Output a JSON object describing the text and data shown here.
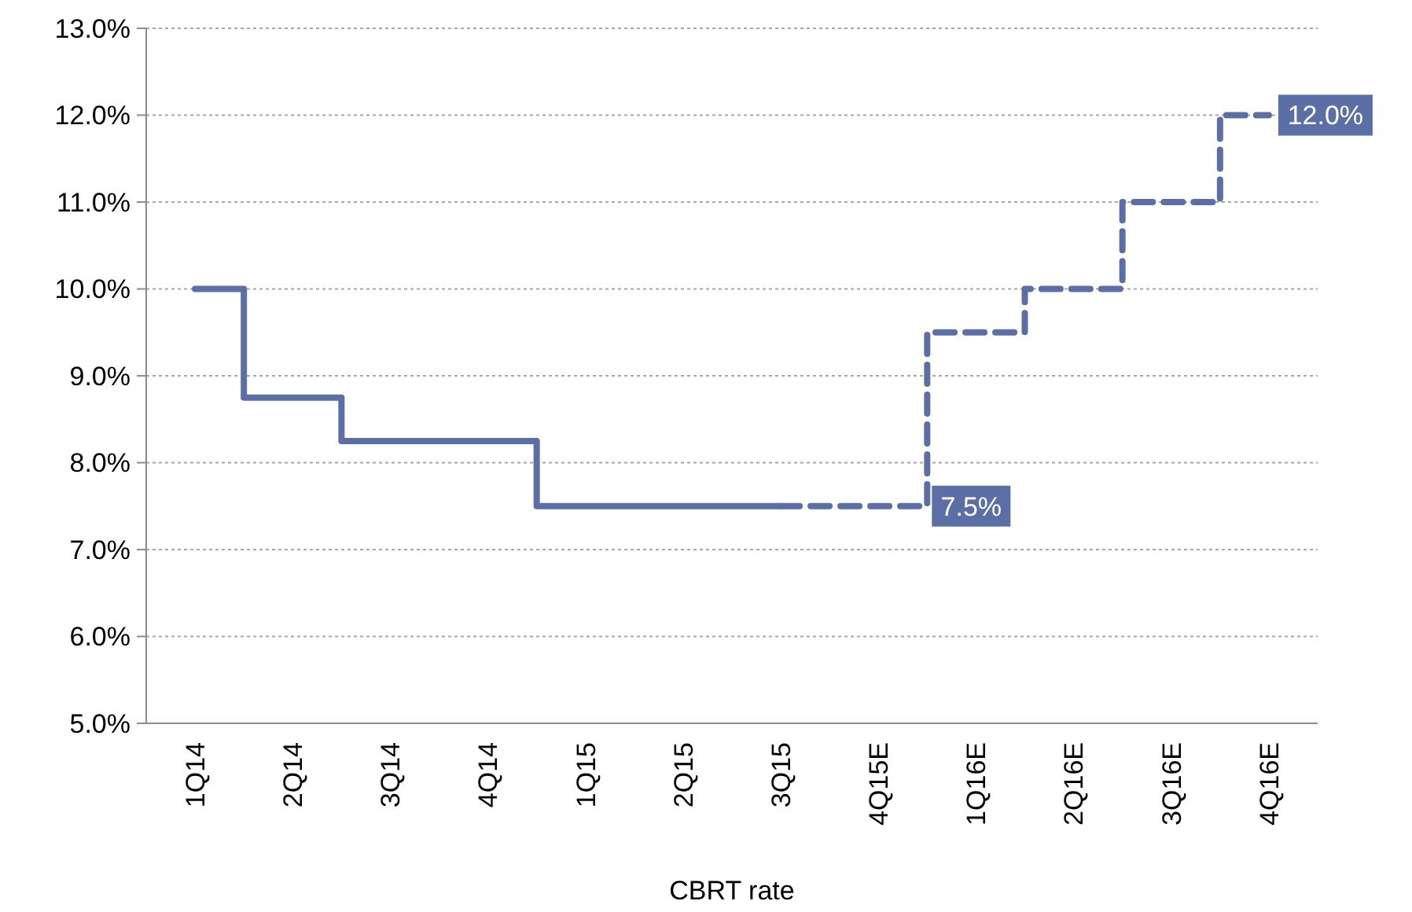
{
  "chart_data": {
    "type": "step",
    "xlabel": "CBRT rate",
    "ylim": [
      5,
      13
    ],
    "categories": [
      "1Q14",
      "2Q14",
      "3Q14",
      "4Q14",
      "1Q15",
      "2Q15",
      "3Q15",
      "4Q15E",
      "1Q16E",
      "2Q16E",
      "3Q16E",
      "4Q16E"
    ],
    "yticks": [
      {
        "value": 5,
        "label": "5.0%"
      },
      {
        "value": 6,
        "label": "6.0%"
      },
      {
        "value": 7,
        "label": "7.0%"
      },
      {
        "value": 8,
        "label": "8.0%"
      },
      {
        "value": 9,
        "label": "9.0%"
      },
      {
        "value": 10,
        "label": "10.0%"
      },
      {
        "value": 11,
        "label": "11.0%"
      },
      {
        "value": 12,
        "label": "12.0%"
      },
      {
        "value": 13,
        "label": "13.0%"
      }
    ],
    "grid": "y",
    "series": [
      {
        "color": "#5b6fa6",
        "line_style": "solid",
        "values": [
          10,
          8.75,
          8.25,
          8.25,
          7.5,
          7.5,
          7.5,
          null,
          null,
          null,
          null,
          null
        ]
      },
      {
        "color": "#5b6fa6",
        "line_style": "dashed",
        "values": [
          null,
          null,
          null,
          null,
          null,
          null,
          7.5,
          7.5,
          9.5,
          10,
          11,
          12
        ]
      }
    ],
    "annotations": [
      {
        "text": "7.5%",
        "x": "4Q15E",
        "y": 7.5
      },
      {
        "text": "12.0%",
        "x": "4Q16E",
        "y": 12
      }
    ]
  }
}
